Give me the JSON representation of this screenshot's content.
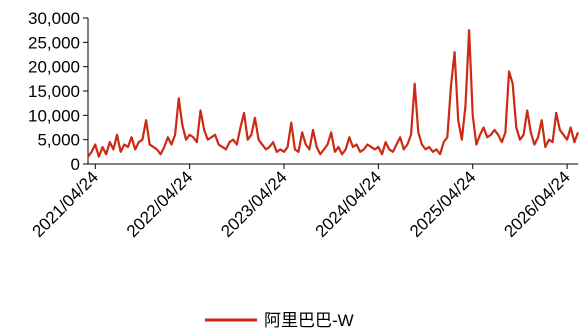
{
  "chart_data": {
    "type": "line",
    "categories": [
      null,
      null,
      "2021/04/24",
      null,
      null,
      null,
      null,
      null,
      null,
      null,
      null,
      null,
      null,
      null,
      null,
      null,
      null,
      null,
      null,
      null,
      null,
      null,
      null,
      null,
      null,
      null,
      null,
      null,
      "2022/04/24",
      null,
      null,
      null,
      null,
      null,
      null,
      null,
      null,
      null,
      null,
      null,
      null,
      null,
      null,
      null,
      null,
      null,
      null,
      null,
      null,
      null,
      null,
      null,
      null,
      null,
      "2023/04/24",
      null,
      null,
      null,
      null,
      null,
      null,
      null,
      null,
      null,
      null,
      null,
      null,
      null,
      null,
      null,
      null,
      null,
      null,
      null,
      null,
      null,
      null,
      null,
      null,
      null,
      "2024/04/24",
      null,
      null,
      null,
      null,
      null,
      null,
      null,
      null,
      null,
      null,
      null,
      null,
      null,
      null,
      null,
      null,
      null,
      null,
      null,
      null,
      null,
      null,
      null,
      null,
      null,
      "2025/04/24",
      null,
      null,
      null,
      null,
      null,
      null,
      null,
      null,
      null,
      null,
      null,
      null,
      null,
      null,
      null,
      null,
      null,
      null,
      null,
      null,
      null,
      null,
      null,
      null,
      null,
      "2026/04/24",
      null,
      null,
      null
    ],
    "series": [
      {
        "name": "阿里巴巴-W",
        "color": "#cc2a14",
        "values": [
          1500,
          2500,
          4000,
          1500,
          3500,
          2000,
          4500,
          3000,
          6000,
          2500,
          4000,
          3500,
          5500,
          3000,
          4500,
          5000,
          9000,
          4000,
          3500,
          3000,
          2000,
          3500,
          5500,
          4000,
          6000,
          13500,
          8000,
          5000,
          6000,
          5500,
          4500,
          11000,
          7000,
          5000,
          5500,
          6000,
          4000,
          3500,
          3000,
          4500,
          5000,
          4000,
          7500,
          10500,
          5000,
          6000,
          9500,
          5000,
          4000,
          3000,
          3500,
          4500,
          2500,
          3000,
          2500,
          3500,
          8500,
          3000,
          2500,
          6500,
          4000,
          3000,
          7000,
          3500,
          2000,
          3000,
          4000,
          6500,
          2500,
          3500,
          2000,
          3000,
          5500,
          3500,
          4000,
          2500,
          3000,
          4000,
          3500,
          3000,
          3500,
          2000,
          4500,
          3000,
          2500,
          4000,
          5500,
          3000,
          4000,
          6000,
          16500,
          6500,
          4000,
          3000,
          3500,
          2500,
          3000,
          2000,
          4500,
          5500,
          16000,
          23000,
          9000,
          5000,
          12000,
          27500,
          10000,
          4000,
          6000,
          7500,
          5500,
          6000,
          7000,
          6000,
          4500,
          6500,
          19000,
          16500,
          7500,
          5000,
          6000,
          11000,
          6500,
          4000,
          5500,
          9000,
          3500,
          5000,
          4500,
          10500,
          7000,
          6000,
          5000,
          7500,
          4500,
          6500
        ]
      }
    ],
    "ylim": [
      0,
      30000
    ],
    "yticks": [
      0,
      {
        "value": 5000,
        "label": "5,000"
      },
      {
        "value": 10000,
        "label": "10,000"
      },
      {
        "value": 15000,
        "label": "15,000"
      },
      {
        "value": 20000,
        "label": "20,000"
      },
      {
        "value": 25000,
        "label": "25,000"
      },
      {
        "value": 30000,
        "label": "30,000"
      }
    ],
    "legend": "bottom"
  }
}
